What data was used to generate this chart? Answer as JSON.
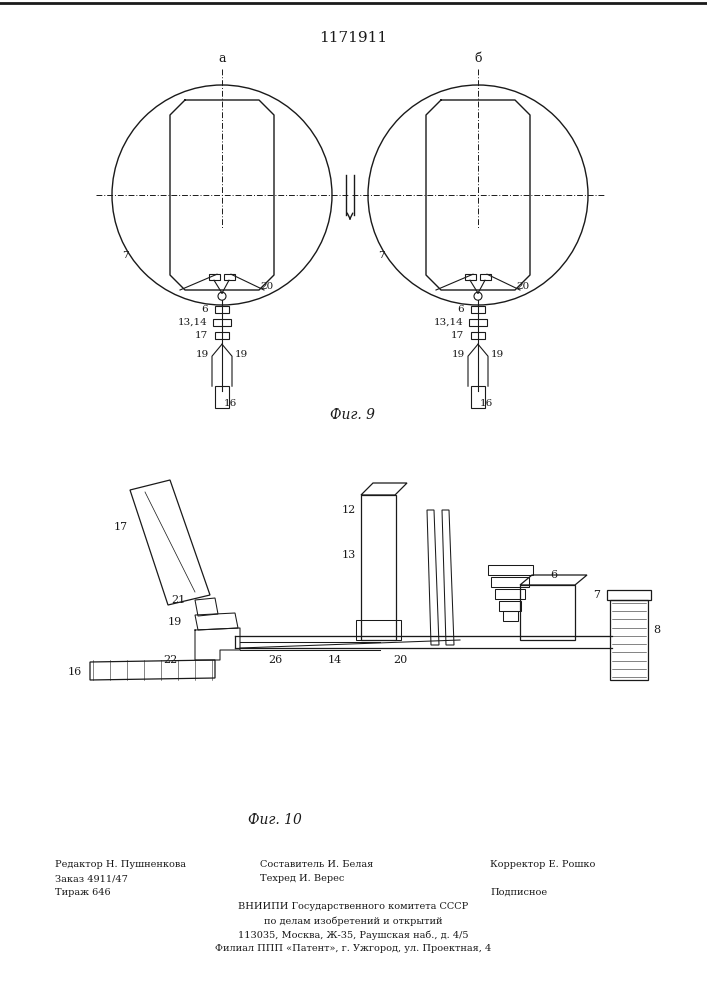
{
  "title": "1171911",
  "fig1_caption": "Фиг. 9",
  "fig2_caption": "Фиг. 10",
  "background_color": "#ffffff",
  "line_color": "#1a1a1a",
  "footer_lines": [
    [
      "Редактор Н. Пушненкова",
      "Составитель И. Белая",
      "Техред И. Верес",
      "Корректор Е. Рошко"
    ],
    [
      "Заказ 4911/47",
      "Тираж 646",
      "",
      "Подписное"
    ],
    [
      "",
      "ВНИИПИ Государственного комитета СССР",
      "",
      ""
    ],
    [
      "",
      "по делам изобретений и открытий",
      "",
      ""
    ],
    [
      "",
      "113035, Москва, Ж-35, Раушская наб., д. 4/5",
      "",
      ""
    ],
    [
      "",
      "Филиал ППП «Патент», г. Ужгород, ул. Проектная, 4",
      "",
      ""
    ]
  ]
}
